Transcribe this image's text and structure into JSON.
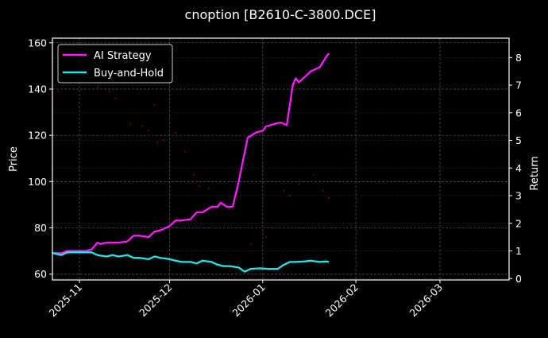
{
  "chart_data": {
    "type": "line",
    "title": "cnoption [B2610-C-3800.DCE]",
    "xlabel": "",
    "ylabel": "Price",
    "ylabel_right": "Return",
    "x_tick_labels": [
      "2025-11",
      "2025-12",
      "2026-01",
      "2026-02",
      "2026-03"
    ],
    "y_ticks_left": [
      60,
      80,
      100,
      120,
      140,
      160
    ],
    "y_ticks_right": [
      0,
      1,
      2,
      3,
      4,
      5,
      6,
      7,
      8
    ],
    "ylim_left": [
      57.5,
      162
    ],
    "ylim_right": [
      -0.05,
      8.7
    ],
    "xlim": [
      "2025-10-23",
      "2026-03-24"
    ],
    "grid": true,
    "legend_position": "upper left",
    "background": "#000000",
    "series": [
      {
        "name": "AI Strategy",
        "axis": "right",
        "color": "#ff1aff",
        "x": [
          "2025-10-23",
          "2025-10-26",
          "2025-10-28",
          "2025-10-31",
          "2025-11-03",
          "2025-11-05",
          "2025-11-07",
          "2025-11-08",
          "2025-11-10",
          "2025-11-12",
          "2025-11-14",
          "2025-11-17",
          "2025-11-19",
          "2025-11-21",
          "2025-11-24",
          "2025-11-26",
          "2025-11-28",
          "2025-12-01",
          "2025-12-03",
          "2025-12-05",
          "2025-12-08",
          "2025-12-10",
          "2025-12-12",
          "2025-12-15",
          "2025-12-17",
          "2025-12-18",
          "2025-12-20",
          "2025-12-22",
          "2025-12-24",
          "2025-12-27",
          "2025-12-30",
          "2026-01-01",
          "2026-01-02",
          "2026-01-05",
          "2026-01-07",
          "2026-01-09",
          "2026-01-11",
          "2026-01-12",
          "2026-01-13",
          "2026-01-15",
          "2026-01-17",
          "2026-01-20",
          "2026-01-22",
          "2026-01-23"
        ],
        "values": [
          0.92,
          0.92,
          1.0,
          1.0,
          1.0,
          1.05,
          1.3,
          1.25,
          1.3,
          1.3,
          1.3,
          1.35,
          1.55,
          1.55,
          1.5,
          1.7,
          1.75,
          1.9,
          2.1,
          2.1,
          2.15,
          2.4,
          2.4,
          2.6,
          2.6,
          2.75,
          2.6,
          2.6,
          3.5,
          5.1,
          5.3,
          5.35,
          5.5,
          5.6,
          5.65,
          5.55,
          7.0,
          7.25,
          7.1,
          7.3,
          7.5,
          7.65,
          8.0,
          8.15
        ]
      },
      {
        "name": "Buy-and-Hold",
        "axis": "right",
        "color": "#22e5e5",
        "x": [
          "2025-10-23",
          "2025-10-26",
          "2025-10-28",
          "2025-10-31",
          "2025-11-03",
          "2025-11-05",
          "2025-11-07",
          "2025-11-10",
          "2025-11-12",
          "2025-11-14",
          "2025-11-17",
          "2025-11-19",
          "2025-11-21",
          "2025-11-24",
          "2025-11-26",
          "2025-11-28",
          "2025-12-01",
          "2025-12-03",
          "2025-12-05",
          "2025-12-08",
          "2025-12-10",
          "2025-12-12",
          "2025-12-15",
          "2025-12-17",
          "2025-12-19",
          "2025-12-21",
          "2025-12-24",
          "2025-12-26",
          "2025-12-28",
          "2025-12-31",
          "2026-01-03",
          "2026-01-06",
          "2026-01-08",
          "2026-01-10",
          "2026-01-12",
          "2026-01-15",
          "2026-01-17",
          "2026-01-20",
          "2026-01-22",
          "2026-01-23"
        ],
        "values": [
          0.92,
          0.85,
          0.95,
          0.95,
          0.95,
          0.95,
          0.85,
          0.8,
          0.85,
          0.8,
          0.85,
          0.75,
          0.75,
          0.7,
          0.8,
          0.75,
          0.7,
          0.65,
          0.6,
          0.6,
          0.55,
          0.65,
          0.6,
          0.5,
          0.45,
          0.45,
          0.4,
          0.25,
          0.35,
          0.37,
          0.35,
          0.35,
          0.5,
          0.6,
          0.6,
          0.62,
          0.65,
          0.6,
          0.62,
          0.6
        ]
      },
      {
        "name": "Price",
        "axis": "left",
        "color": "#8b0a1e",
        "style": "scatter-faint",
        "x": [
          "2025-10-25",
          "2025-11-07",
          "2025-11-11",
          "2025-11-13",
          "2025-11-18",
          "2025-11-22",
          "2025-11-24",
          "2025-11-26",
          "2025-11-27",
          "2025-11-29",
          "2025-12-01",
          "2025-12-03",
          "2025-12-06",
          "2025-12-09",
          "2025-12-11",
          "2025-12-14",
          "2025-12-21",
          "2025-12-28",
          "2026-01-02",
          "2026-01-08",
          "2026-01-10",
          "2026-01-13",
          "2026-01-18",
          "2026-01-21",
          "2026-01-23"
        ],
        "values": [
          139,
          141,
          139,
          136,
          125,
          124,
          122,
          133,
          117,
          118,
          128,
          121,
          113,
          103,
          98,
          97,
          88,
          73,
          76,
          96,
          94,
          99,
          103,
          96,
          93
        ]
      }
    ]
  },
  "legend": {
    "items": [
      {
        "label": "AI Strategy",
        "color": "#ff1aff"
      },
      {
        "label": "Buy-and-Hold",
        "color": "#22e5e5"
      }
    ]
  }
}
